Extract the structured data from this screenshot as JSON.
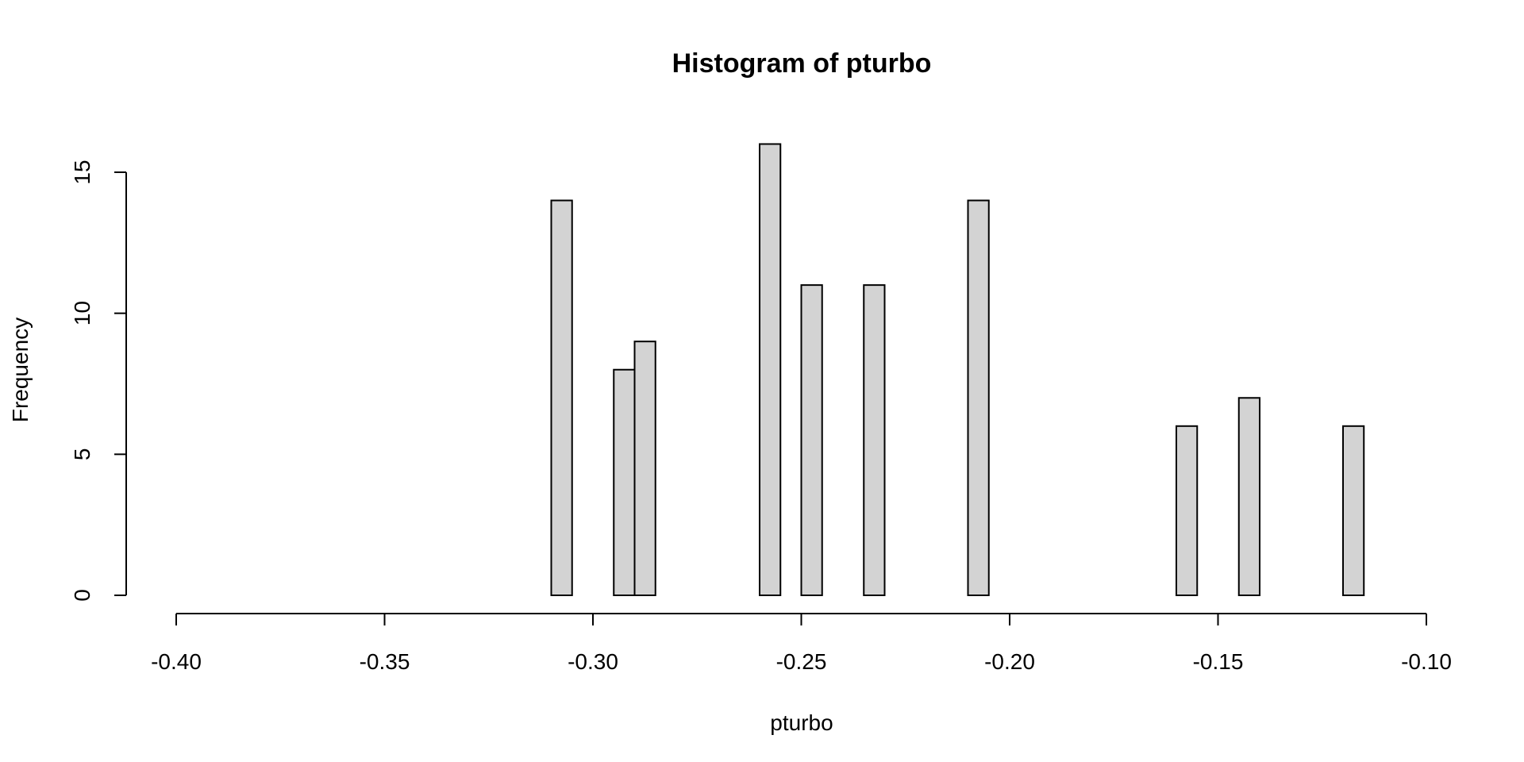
{
  "chart_data": {
    "type": "bar",
    "title": "Histogram of pturbo",
    "xlabel": "pturbo",
    "ylabel": "Frequency",
    "xlim": [
      -0.4,
      -0.1
    ],
    "ylim": [
      0,
      16
    ],
    "x_ticks": [
      "-0.40",
      "-0.35",
      "-0.30",
      "-0.25",
      "-0.20",
      "-0.15",
      "-0.10"
    ],
    "x_tick_values": [
      -0.4,
      -0.35,
      -0.3,
      -0.25,
      -0.2,
      -0.15,
      -0.1
    ],
    "y_ticks": [
      "0",
      "5",
      "10",
      "15"
    ],
    "y_tick_values": [
      0,
      5,
      10,
      15
    ],
    "bin_width": 0.005,
    "bin_start": -0.31,
    "bin_end": -0.115,
    "bins": [
      {
        "start": -0.31,
        "end": -0.305,
        "count": 14
      },
      {
        "start": -0.295,
        "end": -0.29,
        "count": 8
      },
      {
        "start": -0.29,
        "end": -0.285,
        "count": 9
      },
      {
        "start": -0.26,
        "end": -0.255,
        "count": 16
      },
      {
        "start": -0.25,
        "end": -0.245,
        "count": 11
      },
      {
        "start": -0.235,
        "end": -0.23,
        "count": 11
      },
      {
        "start": -0.21,
        "end": -0.205,
        "count": 14
      },
      {
        "start": -0.16,
        "end": -0.155,
        "count": 6
      },
      {
        "start": -0.145,
        "end": -0.14,
        "count": 7
      },
      {
        "start": -0.12,
        "end": -0.115,
        "count": 6
      }
    ],
    "bar_fill": "#d3d3d3",
    "bar_stroke": "#000000",
    "grid": false,
    "legend": "none"
  }
}
